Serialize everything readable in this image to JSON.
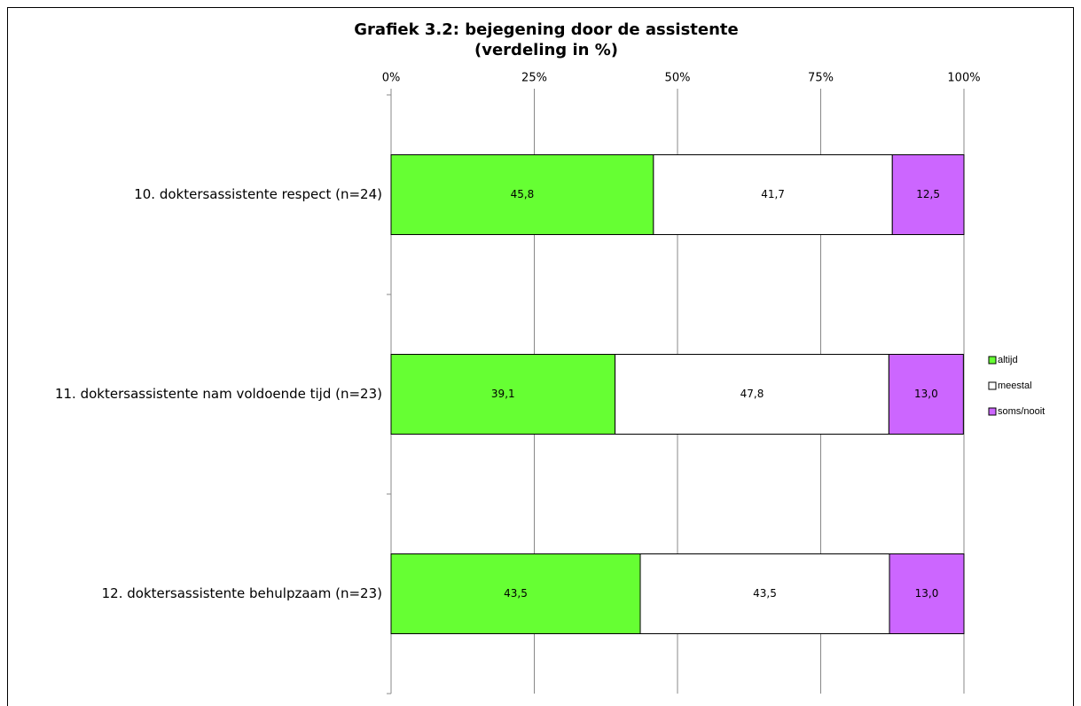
{
  "chart_data": {
    "type": "stacked-bar-horizontal",
    "title": "Grafiek 3.2: bejegening door de assistente",
    "subtitle": "(verdeling in %)",
    "categories": [
      "10. doktersassistente respect (n=24)",
      "11. doktersassistente nam voldoende tijd (n=23)",
      "12. doktersassistente behulpzaam (n=23)"
    ],
    "series": [
      {
        "name": "altijd",
        "color": "#66ff33",
        "values": [
          45.8,
          39.1,
          43.5
        ],
        "value_labels": [
          "45,8",
          "39,1",
          "43,5"
        ]
      },
      {
        "name": "meestal",
        "color": "#ffffff",
        "values": [
          41.7,
          47.8,
          43.5
        ],
        "value_labels": [
          "41,7",
          "47,8",
          "43,5"
        ]
      },
      {
        "name": "soms/nooit",
        "color": "#cc66ff",
        "values": [
          12.5,
          13.0,
          13.0
        ],
        "value_labels": [
          "12,5",
          "13,0",
          "13,0"
        ]
      }
    ],
    "xlim": [
      0,
      100
    ],
    "xticks": [
      {
        "value": 0,
        "label": "0%"
      },
      {
        "value": 25,
        "label": "25%"
      },
      {
        "value": 50,
        "label": "50%"
      },
      {
        "value": 75,
        "label": "75%"
      },
      {
        "value": 100,
        "label": "100%"
      }
    ],
    "grid": true,
    "legend": "right"
  }
}
